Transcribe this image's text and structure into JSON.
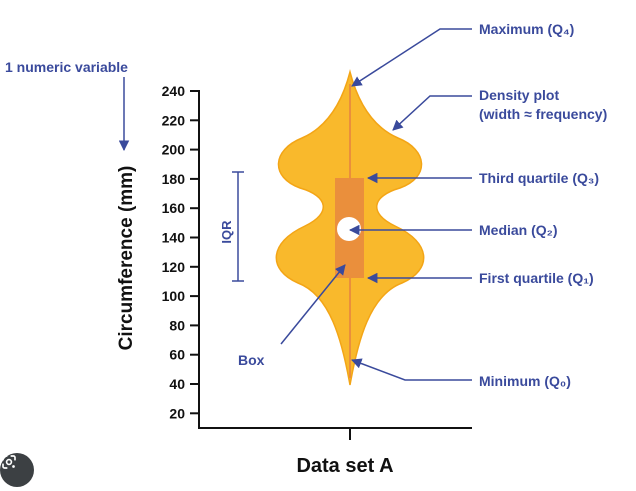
{
  "diagram": {
    "variable_note": "1 numeric variable",
    "y_axis_label": "Circumference (mm)",
    "x_axis_label": "Data set A",
    "y_ticks": [
      "240",
      "220",
      "200",
      "180",
      "160",
      "140",
      "120",
      "100",
      "80",
      "60",
      "40",
      "20"
    ],
    "iqr_label": "IQR",
    "box_label": "Box",
    "annotations": {
      "maximum": "Maximum (Q₄)",
      "density_line1": "Density plot",
      "density_line2": "(width ≈ frequency)",
      "third_quartile": "Third quartile (Q₃)",
      "median": "Median (Q₂)",
      "first_quartile": "First quartile (Q₁)",
      "minimum": "Minimum (Q₀)"
    },
    "colors": {
      "violin": "#f9b92c",
      "box": "#ea8f3c",
      "annotation": "#3a4a9c",
      "axis": "#111111"
    }
  },
  "toolbar": {
    "lens_icon": "google-lens-icon"
  }
}
